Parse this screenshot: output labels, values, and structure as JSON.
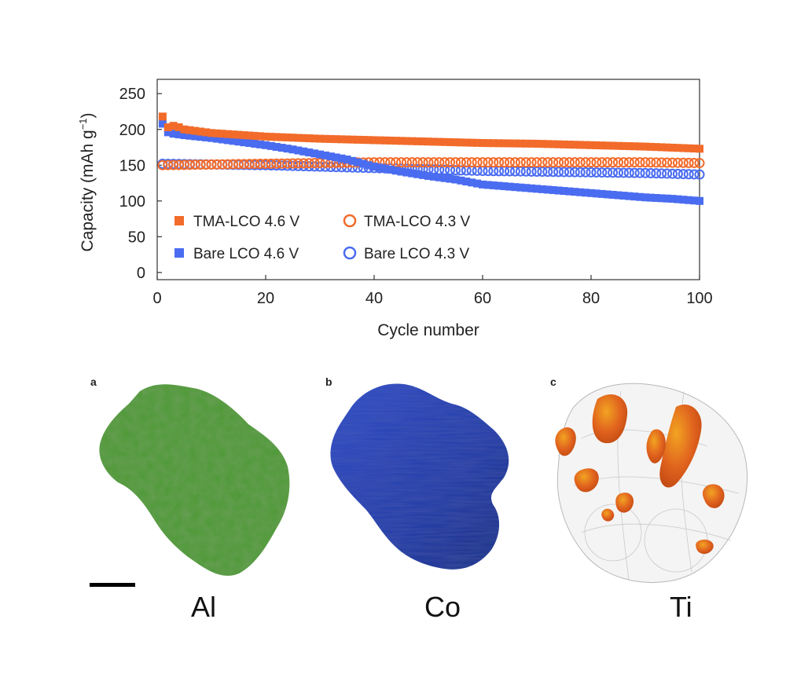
{
  "chart_data": {
    "type": "scatter",
    "xlabel": "Cycle number",
    "ylabel": "Capacity (mAh g",
    "ylabel_sup": "−1",
    "ylabel_close": ")",
    "xlim": [
      0,
      100
    ],
    "ylim": [
      -10,
      270
    ],
    "xticks": [
      0,
      20,
      40,
      60,
      80,
      100
    ],
    "yticks": [
      0,
      50,
      100,
      150,
      200,
      250
    ],
    "legend_position": "bottom-left inside",
    "series": [
      {
        "name": "TMA-LCO 4.6 V",
        "color": "#f26b2a",
        "marker": "filled-square",
        "points": [
          [
            1,
            218
          ],
          [
            2,
            203
          ],
          [
            3,
            205
          ],
          [
            4,
            203
          ],
          [
            5,
            200
          ],
          [
            10,
            195
          ],
          [
            20,
            190
          ],
          [
            30,
            187
          ],
          [
            40,
            185
          ],
          [
            50,
            183
          ],
          [
            60,
            181
          ],
          [
            70,
            180
          ],
          [
            80,
            178
          ],
          [
            90,
            176
          ],
          [
            100,
            173
          ]
        ]
      },
      {
        "name": "Bare LCO 4.6 V",
        "color": "#4a6cf0",
        "marker": "filled-square",
        "points": [
          [
            1,
            208
          ],
          [
            2,
            196
          ],
          [
            3,
            194
          ],
          [
            5,
            192
          ],
          [
            10,
            188
          ],
          [
            15,
            183
          ],
          [
            20,
            178
          ],
          [
            25,
            172
          ],
          [
            30,
            165
          ],
          [
            35,
            158
          ],
          [
            40,
            148
          ],
          [
            45,
            141
          ],
          [
            50,
            135
          ],
          [
            55,
            130
          ],
          [
            60,
            123
          ],
          [
            65,
            120
          ],
          [
            70,
            117
          ],
          [
            75,
            114
          ],
          [
            80,
            111
          ],
          [
            85,
            108
          ],
          [
            90,
            105
          ],
          [
            95,
            103
          ],
          [
            100,
            100
          ]
        ]
      },
      {
        "name": "TMA-LCO 4.3 V",
        "color": "#f26b2a",
        "marker": "open-circle",
        "points": [
          [
            1,
            150
          ],
          [
            10,
            151
          ],
          [
            20,
            152
          ],
          [
            30,
            153
          ],
          [
            40,
            154
          ],
          [
            50,
            154
          ],
          [
            60,
            154
          ],
          [
            70,
            154
          ],
          [
            80,
            154
          ],
          [
            90,
            154
          ],
          [
            100,
            153
          ]
        ]
      },
      {
        "name": "Bare LCO 4.3 V",
        "color": "#4a6cf0",
        "marker": "open-circle",
        "points": [
          [
            1,
            152
          ],
          [
            10,
            151
          ],
          [
            20,
            150
          ],
          [
            30,
            148
          ],
          [
            40,
            146
          ],
          [
            50,
            144
          ],
          [
            60,
            142
          ],
          [
            70,
            141
          ],
          [
            80,
            140
          ],
          [
            90,
            139
          ],
          [
            100,
            137
          ]
        ]
      }
    ]
  },
  "panels": [
    {
      "letter": "a",
      "caption": "Al",
      "color": "#3e8e2e",
      "kind": "Al"
    },
    {
      "letter": "b",
      "caption": "Co",
      "color": "#2540b0",
      "kind": "Co"
    },
    {
      "letter": "c",
      "caption": "Ti",
      "color": "#e0621e",
      "kind": "Ti"
    }
  ]
}
